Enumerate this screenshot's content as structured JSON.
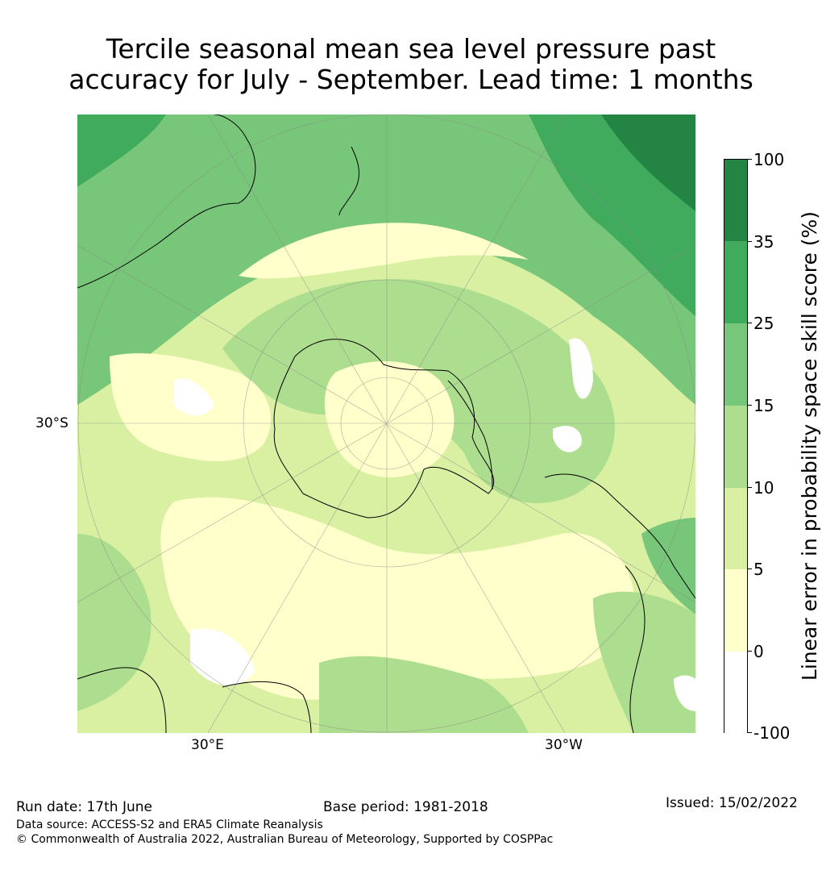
{
  "title": {
    "line1": "Tercile seasonal mean sea level pressure past",
    "line2": "accuracy for July - September. Lead time: 1 months"
  },
  "map": {
    "projection": "south-polar-stereographic",
    "lat_label": "30°S",
    "lon_labels": [
      "30°E",
      "30°W"
    ]
  },
  "colorbar": {
    "label": "Linear error in probability space skill score (%)",
    "bins": [
      {
        "from": "-100",
        "to": "0",
        "color": "#ffffff"
      },
      {
        "from": "0",
        "to": "5",
        "color": "#ffffcc"
      },
      {
        "from": "5",
        "to": "10",
        "color": "#d9f0a3"
      },
      {
        "from": "10",
        "to": "15",
        "color": "#addd8e"
      },
      {
        "from": "15",
        "to": "25",
        "color": "#78c679"
      },
      {
        "from": "25",
        "to": "35",
        "color": "#41ab5d"
      },
      {
        "from": "35",
        "to": "100",
        "color": "#238443"
      }
    ],
    "tick_labels": [
      "100",
      "35",
      "25",
      "15",
      "10",
      "5",
      "0",
      "-100"
    ]
  },
  "footer": {
    "run_date": "Run date: 17th June",
    "base_period": "Base period: 1981-2018",
    "issued": "Issued: 15/02/2022",
    "data_source": "Data source: ACCESS-S2 and ERA5 Climate Reanalysis",
    "copyright": "© Commonwealth of Australia 2022, Australian Bureau of Meteorology, Supported by COSPPac"
  }
}
